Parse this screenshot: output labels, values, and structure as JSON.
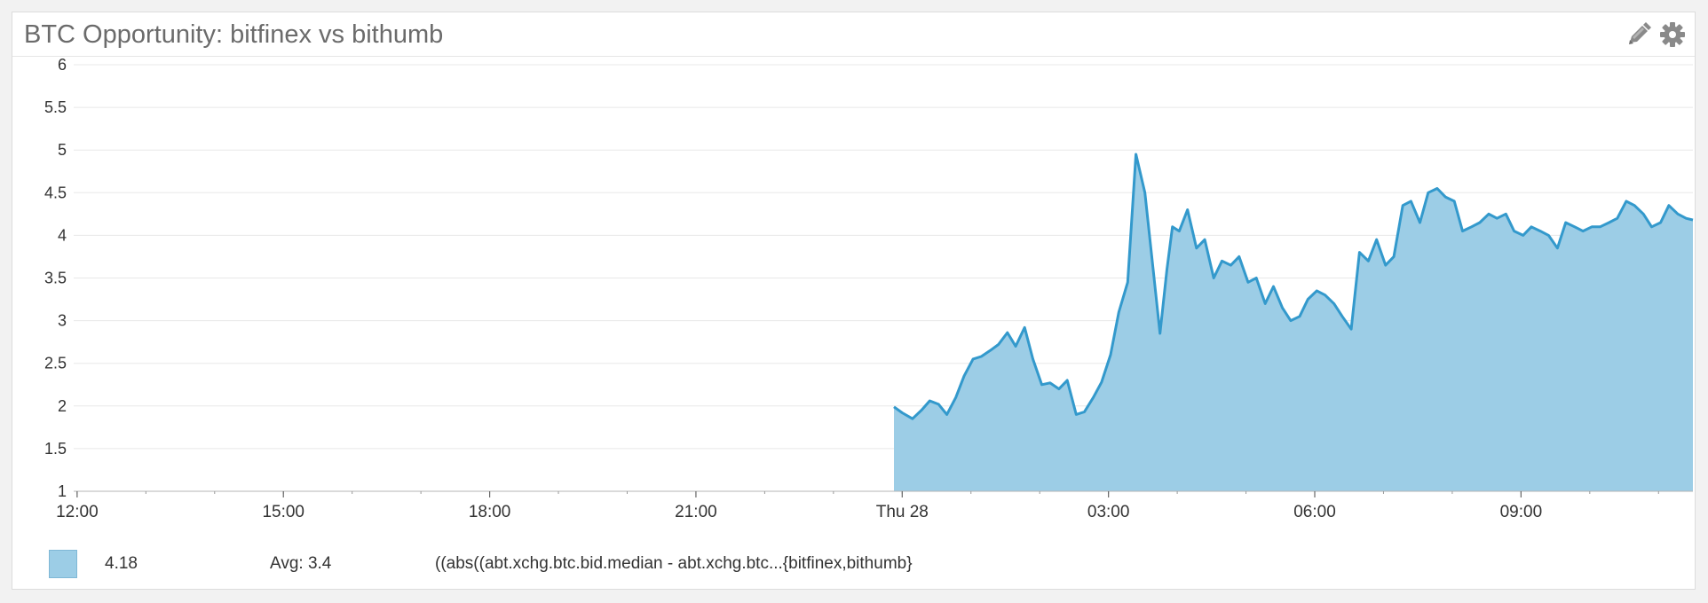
{
  "widget": {
    "title": "BTC Opportunity: bitfinex vs bithumb",
    "edit_icon": "pencil-icon",
    "settings_icon": "gear-icon"
  },
  "legend": {
    "current_value": "4.18",
    "avg_label": "Avg: 3.4",
    "query": "((abs((abt.xchg.btc.bid.median - abt.xchg.btc...{bitfinex,bithumb}"
  },
  "colors": {
    "line": "#3399cc",
    "fill": "#9ccde6",
    "grid": "#e8e8e8",
    "tick_text": "#333333"
  },
  "chart_data": {
    "type": "area",
    "title": "BTC Opportunity: bitfinex vs bithumb",
    "xlabel": "",
    "ylabel": "",
    "ylim": [
      1,
      6
    ],
    "grid": true,
    "y_ticks": [
      "1",
      "1.5",
      "2",
      "2.5",
      "3",
      "3.5",
      "4",
      "4.5",
      "5",
      "5.5",
      "6"
    ],
    "x_ticks": [
      {
        "label": "12:00",
        "hour": 12
      },
      {
        "label": "15:00",
        "hour": 15
      },
      {
        "label": "18:00",
        "hour": 18
      },
      {
        "label": "21:00",
        "hour": 21
      },
      {
        "label": "Thu 28",
        "hour": 24
      },
      {
        "label": "03:00",
        "hour": 27
      },
      {
        "label": "06:00",
        "hour": 30
      },
      {
        "label": "09:00",
        "hour": 33
      }
    ],
    "xlim_hours": [
      11.95,
      35.5
    ],
    "series": [
      {
        "name": "",
        "x_hours": [
          23.88,
          24.0,
          24.15,
          24.28,
          24.4,
          24.53,
          24.65,
          24.78,
          24.9,
          25.03,
          25.15,
          25.28,
          25.4,
          25.53,
          25.65,
          25.78,
          25.9,
          26.03,
          26.15,
          26.28,
          26.4,
          26.53,
          26.65,
          26.78,
          26.9,
          27.03,
          27.15,
          27.28,
          27.4,
          27.53,
          27.65,
          27.75,
          27.85,
          27.93,
          28.03,
          28.15,
          28.28,
          28.4,
          28.53,
          28.65,
          28.78,
          28.9,
          29.03,
          29.15,
          29.28,
          29.4,
          29.53,
          29.65,
          29.78,
          29.9,
          30.03,
          30.15,
          30.28,
          30.4,
          30.53,
          30.65,
          30.78,
          30.9,
          31.03,
          31.15,
          31.28,
          31.4,
          31.53,
          31.65,
          31.78,
          31.9,
          32.03,
          32.15,
          32.28,
          32.4,
          32.53,
          32.65,
          32.78,
          32.9,
          33.03,
          33.15,
          33.28,
          33.4,
          33.53,
          33.65,
          33.78,
          33.9,
          34.03,
          34.15,
          34.28,
          34.4,
          34.53,
          34.65,
          34.78,
          34.9,
          35.03,
          35.15,
          35.28,
          35.4,
          35.5
        ],
        "values": [
          1.99,
          1.92,
          1.85,
          1.95,
          2.06,
          2.02,
          1.9,
          2.1,
          2.35,
          2.55,
          2.58,
          2.65,
          2.72,
          2.86,
          2.7,
          2.92,
          2.55,
          2.25,
          2.27,
          2.2,
          2.3,
          1.9,
          1.93,
          2.1,
          2.28,
          2.6,
          3.1,
          3.45,
          4.95,
          4.5,
          3.6,
          2.85,
          3.6,
          4.1,
          4.05,
          4.3,
          3.85,
          3.95,
          3.5,
          3.7,
          3.65,
          3.75,
          3.45,
          3.5,
          3.2,
          3.4,
          3.15,
          3.0,
          3.05,
          3.25,
          3.35,
          3.3,
          3.2,
          3.05,
          2.9,
          3.8,
          3.7,
          3.95,
          3.65,
          3.75,
          4.35,
          4.4,
          4.15,
          4.5,
          4.55,
          4.45,
          4.4,
          4.05,
          4.1,
          4.15,
          4.25,
          4.2,
          4.25,
          4.05,
          4.0,
          4.1,
          4.05,
          4.0,
          3.85,
          4.15,
          4.1,
          4.05,
          4.1,
          4.1,
          4.15,
          4.2,
          4.4,
          4.35,
          4.25,
          4.1,
          4.15,
          4.35,
          4.25,
          4.2,
          4.18
        ]
      }
    ]
  }
}
